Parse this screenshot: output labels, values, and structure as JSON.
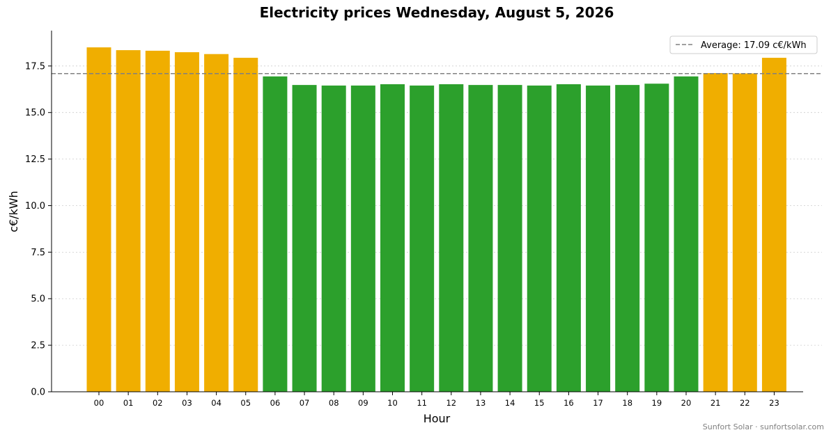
{
  "chart_data": {
    "type": "bar",
    "title": "Electricity prices Wednesday, August 5, 2026",
    "xlabel": "Hour",
    "ylabel": "c€/kWh",
    "categories": [
      "00",
      "01",
      "02",
      "03",
      "04",
      "05",
      "06",
      "07",
      "08",
      "09",
      "10",
      "11",
      "12",
      "13",
      "14",
      "15",
      "16",
      "17",
      "18",
      "19",
      "20",
      "21",
      "22",
      "23"
    ],
    "values": [
      18.5,
      18.35,
      18.32,
      18.24,
      18.14,
      17.94,
      16.94,
      16.48,
      16.45,
      16.45,
      16.52,
      16.45,
      16.52,
      16.48,
      16.48,
      16.45,
      16.52,
      16.45,
      16.48,
      16.55,
      16.94,
      17.12,
      17.1,
      17.94
    ],
    "ylim": [
      0,
      19.4
    ],
    "yticks": [
      "0.0",
      "2.5",
      "5.0",
      "7.5",
      "10.0",
      "12.5",
      "15.0",
      "17.5"
    ],
    "average": 17.09,
    "grid": "horizontal dotted",
    "legend_position": "top-right",
    "legend": {
      "label": "Average: 17.09 c€/kWh"
    },
    "colors": {
      "above_average": "#f0ae00",
      "below_average": "#2ca02c",
      "average_line": "#808080"
    }
  },
  "footer": {
    "text": "Sunfort Solar · sunfortsolar.com"
  }
}
